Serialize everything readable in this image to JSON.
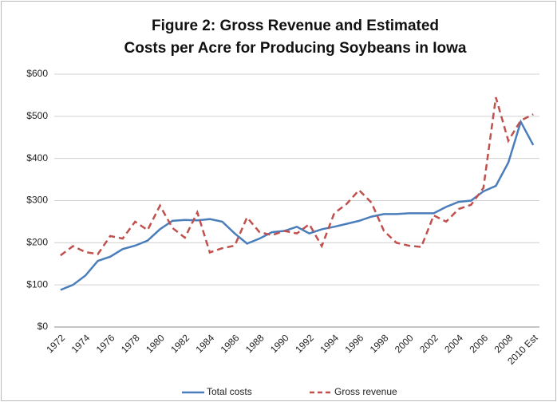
{
  "chart_data": {
    "type": "line",
    "title": [
      "Figure 2: Gross Revenue and Estimated",
      "Costs per Acre for Producing Soybeans in Iowa"
    ],
    "categories": [
      "1972",
      null,
      "1974",
      null,
      "1976",
      null,
      "1978",
      null,
      "1980",
      null,
      "1982",
      null,
      "1984",
      null,
      "1986",
      null,
      "1988",
      null,
      "1990",
      null,
      "1992",
      null,
      "1994",
      null,
      "1996",
      null,
      "1998",
      null,
      "2000",
      null,
      "2002",
      null,
      "2004",
      null,
      "2006",
      null,
      "2008",
      null,
      "2010 Est"
    ],
    "series": [
      {
        "name": "Total costs",
        "color": "#4a7ebb",
        "dash": false,
        "values": [
          88,
          100,
          122,
          157,
          167,
          185,
          193,
          205,
          232,
          252,
          254,
          253,
          256,
          250,
          222,
          198,
          210,
          225,
          228,
          238,
          222,
          232,
          238,
          245,
          252,
          262,
          268,
          268,
          270,
          270,
          270,
          285,
          297,
          300,
          322,
          335,
          390,
          487,
          432
        ]
      },
      {
        "name": "Gross revenue",
        "color": "#c0504d",
        "dash": true,
        "values": [
          170,
          192,
          178,
          173,
          216,
          210,
          250,
          230,
          288,
          235,
          212,
          272,
          177,
          187,
          193,
          260,
          225,
          218,
          228,
          222,
          244,
          192,
          270,
          292,
          325,
          295,
          228,
          200,
          193,
          190,
          265,
          250,
          280,
          290,
          330,
          545,
          442,
          490,
          505
        ]
      }
    ],
    "ylim": [
      0,
      600
    ],
    "yticks": [
      {
        "value": 0,
        "label": "$0"
      },
      {
        "value": 100,
        "label": "$100"
      },
      {
        "value": 200,
        "label": "$200"
      },
      {
        "value": 300,
        "label": "$300"
      },
      {
        "value": 400,
        "label": "$400"
      },
      {
        "value": 500,
        "label": "$500"
      },
      {
        "value": 600,
        "label": "$600"
      }
    ],
    "grid": true,
    "legend": "bottom"
  }
}
